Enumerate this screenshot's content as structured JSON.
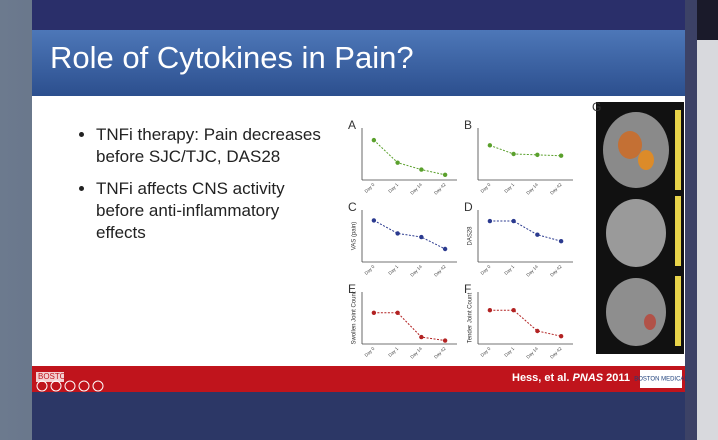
{
  "slide": {
    "title": "Role of Cytokines in Pain?",
    "bullets": [
      "TNFi therapy: Pain decreases before SJC/TJC, DAS28",
      "TNFi affects CNS activity before anti-inflammatory effects"
    ],
    "citation": {
      "authors": "Hess, et al.",
      "journal": "PNAS",
      "year": "2011"
    },
    "logo_left": "BOSTON",
    "logo_right": "BOSTON MEDICAL",
    "image_panel_letter": "G",
    "categories": [
      "Day 0",
      "Day 1",
      "Day 14",
      "Day 42"
    ],
    "panels": [
      {
        "letter": "A",
        "color": "#5aa02c",
        "ylim": [
          0,
          300
        ],
        "values": [
          230,
          100,
          60,
          30
        ]
      },
      {
        "letter": "B",
        "color": "#5aa02c",
        "ylim": [
          0,
          300
        ],
        "values": [
          200,
          150,
          145,
          140
        ]
      },
      {
        "letter": "C",
        "ylabel": "VAS (pain)",
        "color": "#2b3a8f",
        "ylim": [
          0,
          100
        ],
        "values": [
          80,
          55,
          48,
          25
        ]
      },
      {
        "letter": "D",
        "ylabel": "DAS28",
        "color": "#2b3a8f",
        "ylim": [
          0,
          8
        ],
        "values": [
          6.3,
          6.3,
          4.2,
          3.2
        ]
      },
      {
        "letter": "E",
        "ylabel": "Swollen Joint Count",
        "color": "#b22222",
        "ylim": [
          0,
          15
        ],
        "values": [
          9,
          9,
          2,
          1
        ]
      },
      {
        "letter": "F",
        "ylabel": "Tender Joint Count",
        "color": "#b22222",
        "ylim": [
          0,
          20
        ],
        "values": [
          13,
          13,
          5,
          3
        ]
      }
    ]
  }
}
